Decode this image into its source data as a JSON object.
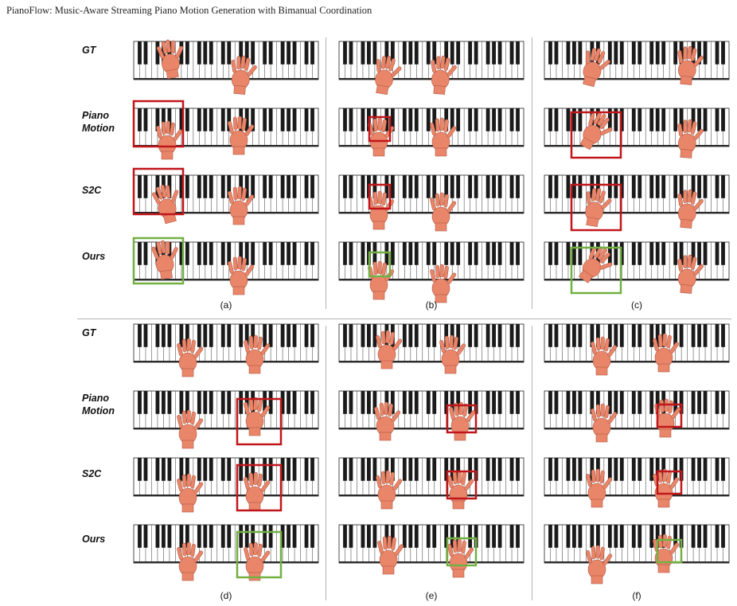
{
  "header": {
    "title": "PianoFlow: Music-Aware Streaming Piano Motion Generation with Bimanual Coordination"
  },
  "rows": [
    {
      "label_lines": [
        "GT"
      ]
    },
    {
      "label_lines": [
        "Piano",
        "Motion"
      ]
    },
    {
      "label_lines": [
        "S2C"
      ]
    },
    {
      "label_lines": [
        "Ours"
      ]
    }
  ],
  "panels": [
    {
      "caption": "(a)"
    },
    {
      "caption": "(b)"
    },
    {
      "caption": "(c)"
    },
    {
      "caption": "(d)"
    },
    {
      "caption": "(e)"
    },
    {
      "caption": "(f)"
    }
  ],
  "colors": {
    "highlight_red": "#c0161b",
    "highlight_green": "#72b043",
    "hand_skin": "#e9866a",
    "divider": "#b5b5b5"
  }
}
